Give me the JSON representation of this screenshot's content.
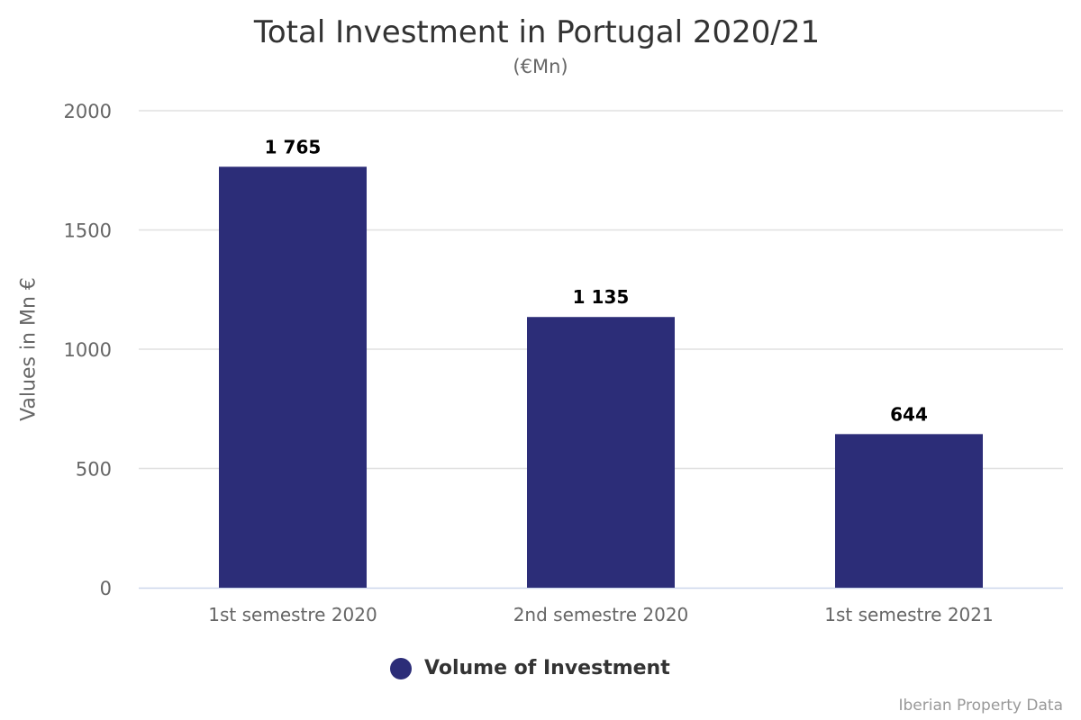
{
  "chart_data": {
    "type": "bar",
    "title": "Total Investment in Portugal 2020/21",
    "subtitle": "(€Mn)",
    "xlabel": "",
    "ylabel": "Values in Mn €",
    "categories": [
      "1st semestre 2020",
      "2nd semestre 2020",
      "1st semestre 2021"
    ],
    "series": [
      {
        "name": "Volume of Investment",
        "values": [
          1765,
          1135,
          644
        ],
        "color": "#2c2d78"
      }
    ],
    "data_labels": [
      "1 765",
      "1 135",
      "644"
    ],
    "ylim": [
      0,
      2000
    ],
    "yticks": [
      0,
      500,
      1000,
      1500,
      2000
    ],
    "grid": true,
    "legend": "bottom-center"
  },
  "credits": "Iberian Property Data"
}
